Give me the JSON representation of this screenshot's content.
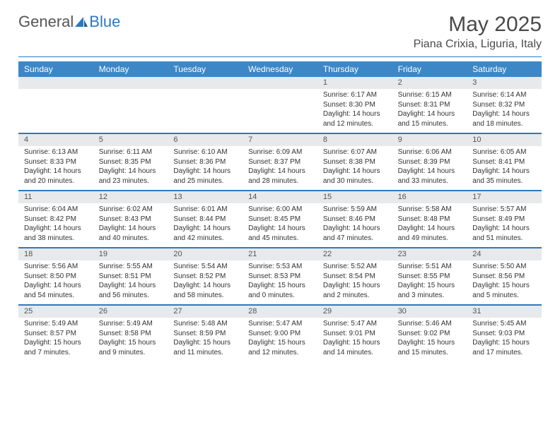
{
  "logo": {
    "general": "General",
    "blue": "Blue"
  },
  "title": "May 2025",
  "subtitle": "Piana Crixia, Liguria, Italy",
  "colors": {
    "header_bg": "#3d87c7",
    "rule": "#2b7ac0",
    "daynum_bg": "#e7e9ea",
    "text": "#333333"
  },
  "day_labels": [
    "Sunday",
    "Monday",
    "Tuesday",
    "Wednesday",
    "Thursday",
    "Friday",
    "Saturday"
  ],
  "weeks": [
    {
      "nums": [
        "",
        "",
        "",
        "",
        "1",
        "2",
        "3"
      ],
      "cells": [
        null,
        null,
        null,
        null,
        {
          "sr": "Sunrise: 6:17 AM",
          "ss": "Sunset: 8:30 PM",
          "dl": "Daylight: 14 hours and 12 minutes."
        },
        {
          "sr": "Sunrise: 6:15 AM",
          "ss": "Sunset: 8:31 PM",
          "dl": "Daylight: 14 hours and 15 minutes."
        },
        {
          "sr": "Sunrise: 6:14 AM",
          "ss": "Sunset: 8:32 PM",
          "dl": "Daylight: 14 hours and 18 minutes."
        }
      ]
    },
    {
      "nums": [
        "4",
        "5",
        "6",
        "7",
        "8",
        "9",
        "10"
      ],
      "cells": [
        {
          "sr": "Sunrise: 6:13 AM",
          "ss": "Sunset: 8:33 PM",
          "dl": "Daylight: 14 hours and 20 minutes."
        },
        {
          "sr": "Sunrise: 6:11 AM",
          "ss": "Sunset: 8:35 PM",
          "dl": "Daylight: 14 hours and 23 minutes."
        },
        {
          "sr": "Sunrise: 6:10 AM",
          "ss": "Sunset: 8:36 PM",
          "dl": "Daylight: 14 hours and 25 minutes."
        },
        {
          "sr": "Sunrise: 6:09 AM",
          "ss": "Sunset: 8:37 PM",
          "dl": "Daylight: 14 hours and 28 minutes."
        },
        {
          "sr": "Sunrise: 6:07 AM",
          "ss": "Sunset: 8:38 PM",
          "dl": "Daylight: 14 hours and 30 minutes."
        },
        {
          "sr": "Sunrise: 6:06 AM",
          "ss": "Sunset: 8:39 PM",
          "dl": "Daylight: 14 hours and 33 minutes."
        },
        {
          "sr": "Sunrise: 6:05 AM",
          "ss": "Sunset: 8:41 PM",
          "dl": "Daylight: 14 hours and 35 minutes."
        }
      ]
    },
    {
      "nums": [
        "11",
        "12",
        "13",
        "14",
        "15",
        "16",
        "17"
      ],
      "cells": [
        {
          "sr": "Sunrise: 6:04 AM",
          "ss": "Sunset: 8:42 PM",
          "dl": "Daylight: 14 hours and 38 minutes."
        },
        {
          "sr": "Sunrise: 6:02 AM",
          "ss": "Sunset: 8:43 PM",
          "dl": "Daylight: 14 hours and 40 minutes."
        },
        {
          "sr": "Sunrise: 6:01 AM",
          "ss": "Sunset: 8:44 PM",
          "dl": "Daylight: 14 hours and 42 minutes."
        },
        {
          "sr": "Sunrise: 6:00 AM",
          "ss": "Sunset: 8:45 PM",
          "dl": "Daylight: 14 hours and 45 minutes."
        },
        {
          "sr": "Sunrise: 5:59 AM",
          "ss": "Sunset: 8:46 PM",
          "dl": "Daylight: 14 hours and 47 minutes."
        },
        {
          "sr": "Sunrise: 5:58 AM",
          "ss": "Sunset: 8:48 PM",
          "dl": "Daylight: 14 hours and 49 minutes."
        },
        {
          "sr": "Sunrise: 5:57 AM",
          "ss": "Sunset: 8:49 PM",
          "dl": "Daylight: 14 hours and 51 minutes."
        }
      ]
    },
    {
      "nums": [
        "18",
        "19",
        "20",
        "21",
        "22",
        "23",
        "24"
      ],
      "cells": [
        {
          "sr": "Sunrise: 5:56 AM",
          "ss": "Sunset: 8:50 PM",
          "dl": "Daylight: 14 hours and 54 minutes."
        },
        {
          "sr": "Sunrise: 5:55 AM",
          "ss": "Sunset: 8:51 PM",
          "dl": "Daylight: 14 hours and 56 minutes."
        },
        {
          "sr": "Sunrise: 5:54 AM",
          "ss": "Sunset: 8:52 PM",
          "dl": "Daylight: 14 hours and 58 minutes."
        },
        {
          "sr": "Sunrise: 5:53 AM",
          "ss": "Sunset: 8:53 PM",
          "dl": "Daylight: 15 hours and 0 minutes."
        },
        {
          "sr": "Sunrise: 5:52 AM",
          "ss": "Sunset: 8:54 PM",
          "dl": "Daylight: 15 hours and 2 minutes."
        },
        {
          "sr": "Sunrise: 5:51 AM",
          "ss": "Sunset: 8:55 PM",
          "dl": "Daylight: 15 hours and 3 minutes."
        },
        {
          "sr": "Sunrise: 5:50 AM",
          "ss": "Sunset: 8:56 PM",
          "dl": "Daylight: 15 hours and 5 minutes."
        }
      ]
    },
    {
      "nums": [
        "25",
        "26",
        "27",
        "28",
        "29",
        "30",
        "31"
      ],
      "cells": [
        {
          "sr": "Sunrise: 5:49 AM",
          "ss": "Sunset: 8:57 PM",
          "dl": "Daylight: 15 hours and 7 minutes."
        },
        {
          "sr": "Sunrise: 5:49 AM",
          "ss": "Sunset: 8:58 PM",
          "dl": "Daylight: 15 hours and 9 minutes."
        },
        {
          "sr": "Sunrise: 5:48 AM",
          "ss": "Sunset: 8:59 PM",
          "dl": "Daylight: 15 hours and 11 minutes."
        },
        {
          "sr": "Sunrise: 5:47 AM",
          "ss": "Sunset: 9:00 PM",
          "dl": "Daylight: 15 hours and 12 minutes."
        },
        {
          "sr": "Sunrise: 5:47 AM",
          "ss": "Sunset: 9:01 PM",
          "dl": "Daylight: 15 hours and 14 minutes."
        },
        {
          "sr": "Sunrise: 5:46 AM",
          "ss": "Sunset: 9:02 PM",
          "dl": "Daylight: 15 hours and 15 minutes."
        },
        {
          "sr": "Sunrise: 5:45 AM",
          "ss": "Sunset: 9:03 PM",
          "dl": "Daylight: 15 hours and 17 minutes."
        }
      ]
    }
  ]
}
